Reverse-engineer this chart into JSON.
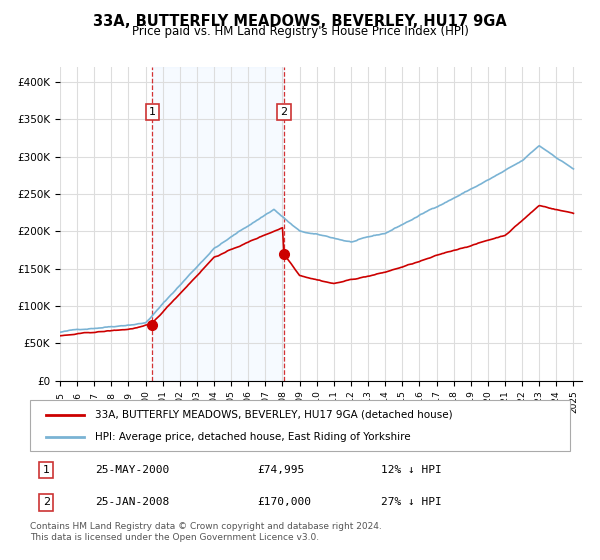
{
  "title": "33A, BUTTERFLY MEADOWS, BEVERLEY, HU17 9GA",
  "subtitle": "Price paid vs. HM Land Registry's House Price Index (HPI)",
  "legend_line1": "33A, BUTTERFLY MEADOWS, BEVERLEY, HU17 9GA (detached house)",
  "legend_line2": "HPI: Average price, detached house, East Riding of Yorkshire",
  "footnote1": "Contains HM Land Registry data © Crown copyright and database right 2024.",
  "footnote2": "This data is licensed under the Open Government Licence v3.0.",
  "sale1_label": "1",
  "sale1_date": "25-MAY-2000",
  "sale1_price": "£74,995",
  "sale1_hpi": "12% ↓ HPI",
  "sale1_year": 2000.4,
  "sale1_value": 74995,
  "sale2_label": "2",
  "sale2_date": "25-JAN-2008",
  "sale2_price": "£170,000",
  "sale2_hpi": "27% ↓ HPI",
  "sale2_year": 2008.07,
  "sale2_value": 170000,
  "red_color": "#cc0000",
  "blue_color": "#7ab3d4",
  "shade_color": "#ddeeff",
  "grid_color": "#dddddd",
  "background_color": "#f7f7f7",
  "ylim": [
    0,
    420000
  ],
  "xlim_start": 1995,
  "xlim_end": 2025.5
}
